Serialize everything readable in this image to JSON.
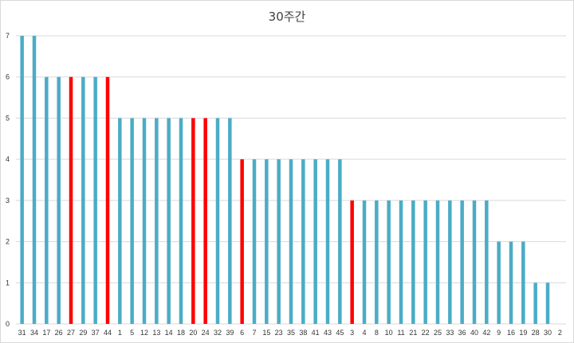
{
  "chart_data": {
    "type": "bar",
    "title": "30주간",
    "xlabel": "",
    "ylabel": "",
    "ylim": [
      0,
      7
    ],
    "yticks": [
      "0",
      "1",
      "2",
      "3",
      "4",
      "5",
      "6",
      "7"
    ],
    "grid": true,
    "legend": "none",
    "colors": {
      "default": "#4bacc6",
      "highlight": "#ff0000"
    },
    "categories": [
      "31",
      "34",
      "17",
      "26",
      "27",
      "29",
      "37",
      "44",
      "1",
      "5",
      "12",
      "13",
      "14",
      "18",
      "20",
      "24",
      "32",
      "39",
      "6",
      "7",
      "15",
      "23",
      "35",
      "38",
      "41",
      "43",
      "45",
      "3",
      "4",
      "8",
      "10",
      "11",
      "21",
      "22",
      "25",
      "33",
      "36",
      "40",
      "42",
      "9",
      "16",
      "19",
      "28",
      "30",
      "2"
    ],
    "values": [
      7,
      7,
      6,
      6,
      6,
      6,
      6,
      6,
      5,
      5,
      5,
      5,
      5,
      5,
      5,
      5,
      5,
      5,
      4,
      4,
      4,
      4,
      4,
      4,
      4,
      4,
      4,
      3,
      3,
      3,
      3,
      3,
      3,
      3,
      3,
      3,
      3,
      3,
      3,
      2,
      2,
      2,
      1,
      1,
      0
    ],
    "highlighted": [
      "27",
      "44",
      "20",
      "24",
      "6",
      "3"
    ]
  }
}
